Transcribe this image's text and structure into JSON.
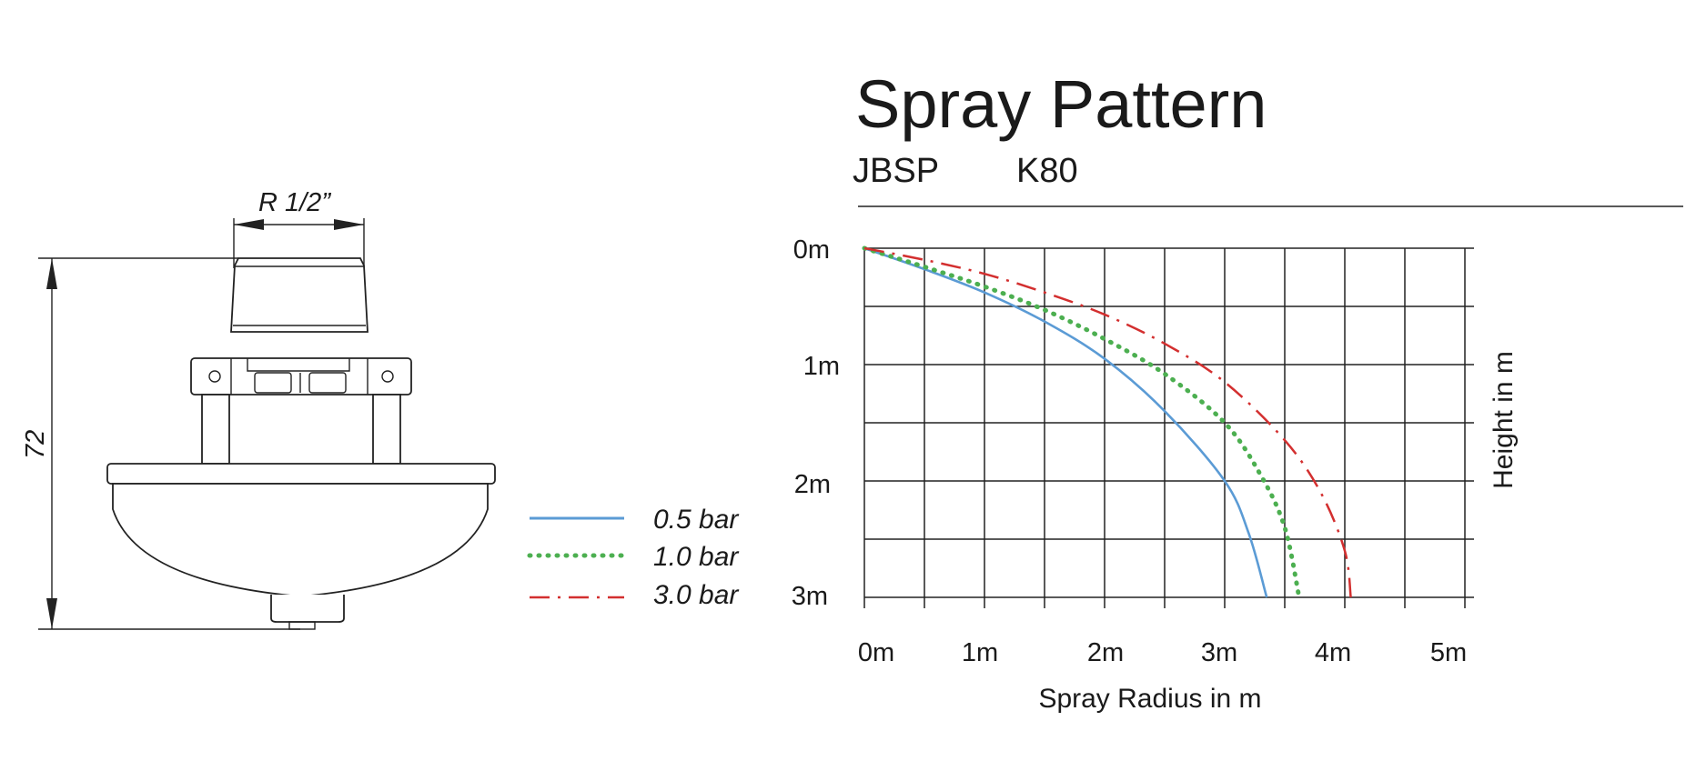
{
  "drawing": {
    "thread_label": "R  1/2”",
    "height_label": "72"
  },
  "legend": [
    {
      "label": "0.5 bar",
      "color": "#5b9bd5",
      "style": "solid"
    },
    {
      "label": "1.0 bar",
      "color": "#4caf50",
      "style": "dotted"
    },
    {
      "label": "3.0 bar",
      "color": "#d32f2f",
      "style": "dashdot"
    }
  ],
  "chart_data": {
    "type": "line",
    "title": "Spray Pattern",
    "subtitle_left": "JBSP",
    "subtitle_right": "K80",
    "xlabel": "Spray Radius in m",
    "ylabel": "Height in m",
    "xlim": [
      0,
      5
    ],
    "ylim": [
      0,
      3
    ],
    "y_inverted": true,
    "grid": true,
    "grid_step": 0.5,
    "x_ticks": [
      "0m",
      "1m",
      "2m",
      "3m",
      "4m",
      "5m"
    ],
    "y_ticks": [
      "0m",
      "1m",
      "2m",
      "3m"
    ],
    "legend_position": "left of plot",
    "series": [
      {
        "name": "0.5 bar",
        "color": "#5b9bd5",
        "style": "solid",
        "x": [
          0,
          0.5,
          1.0,
          1.5,
          2.0,
          2.5,
          3.0,
          3.2,
          3.35
        ],
        "y": [
          0,
          0.18,
          0.38,
          0.63,
          0.95,
          1.4,
          2.0,
          2.45,
          3.0
        ]
      },
      {
        "name": "1.0 bar",
        "color": "#4caf50",
        "style": "dotted",
        "x": [
          0,
          0.5,
          1.0,
          1.5,
          2.0,
          2.5,
          3.0,
          3.3,
          3.5,
          3.62
        ],
        "y": [
          0,
          0.16,
          0.33,
          0.53,
          0.78,
          1.08,
          1.5,
          1.95,
          2.4,
          3.0
        ]
      },
      {
        "name": "3.0 bar",
        "color": "#d32f2f",
        "style": "dashdot",
        "x": [
          0,
          0.5,
          1.0,
          1.5,
          2.0,
          2.5,
          3.0,
          3.5,
          3.8,
          4.0,
          4.05
        ],
        "y": [
          0,
          0.1,
          0.22,
          0.38,
          0.57,
          0.82,
          1.15,
          1.65,
          2.1,
          2.6,
          3.0
        ]
      }
    ]
  }
}
